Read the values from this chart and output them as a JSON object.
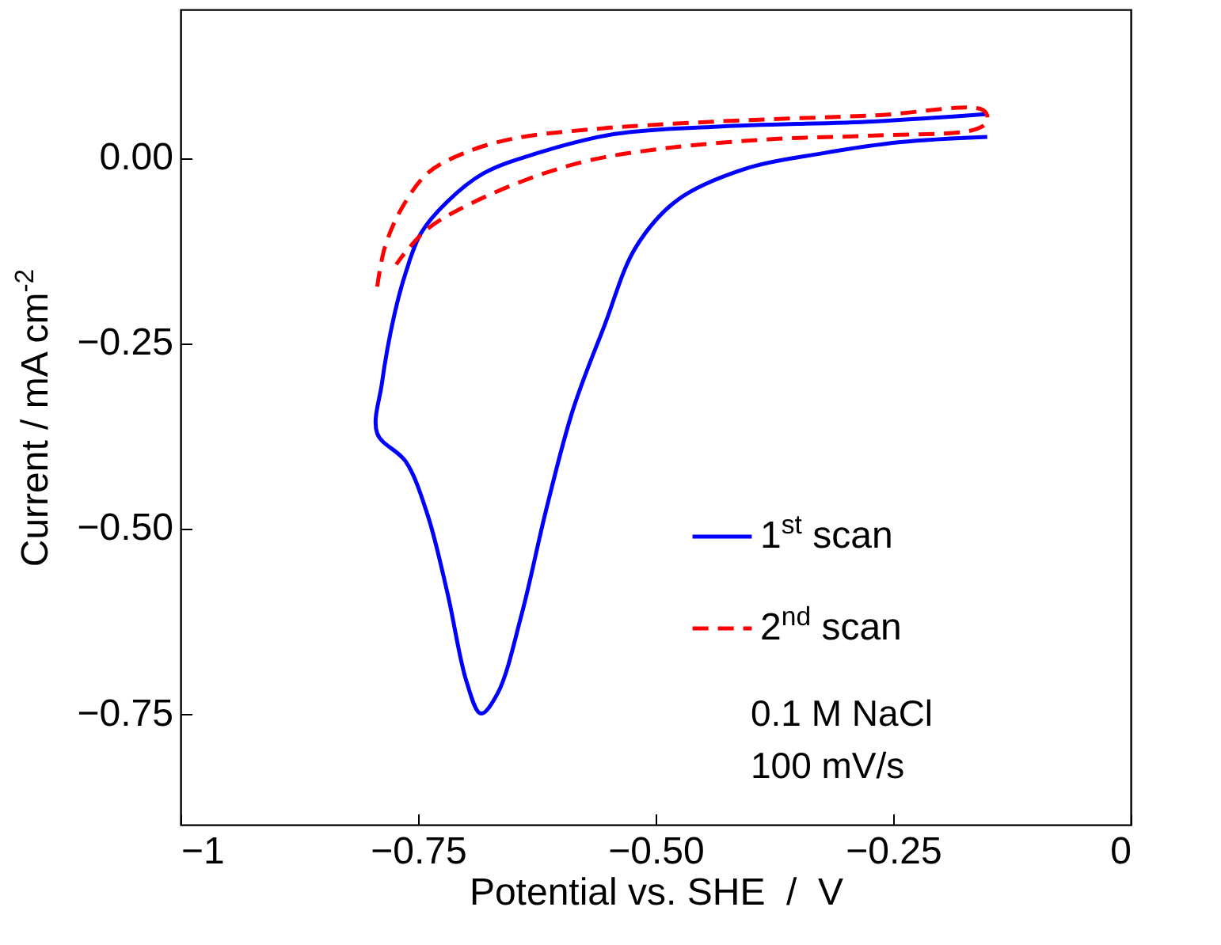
{
  "chart_data": {
    "type": "line",
    "xlabel": "Potential vs. SHE  /  V",
    "ylabel": "Current / mA cm$^{-2}$",
    "xlim": [
      -1,
      0
    ],
    "ylim": [
      -0.9,
      0.2
    ],
    "xticks": [
      {
        "value": -1,
        "label": "−1"
      },
      {
        "value": -0.75,
        "label": "−0.75"
      },
      {
        "value": -0.5,
        "label": "−0.50"
      },
      {
        "value": -0.25,
        "label": "−0.25"
      },
      {
        "value": 0,
        "label": "0"
      }
    ],
    "yticks": [
      {
        "value": 0,
        "label": "0.00"
      },
      {
        "value": -0.25,
        "label": "−0.25"
      },
      {
        "value": -0.5,
        "label": "−0.50"
      },
      {
        "value": -0.75,
        "label": "−0.75"
      }
    ],
    "grid": false,
    "legend": "bottom right",
    "annotations": [
      "0.1 M NaCl",
      "100 mV/s"
    ],
    "series": [
      {
        "name": "1$^{st}$ scan",
        "color": "#0000ff",
        "line_style": "solid",
        "x": [
          -0.151,
          -0.27,
          -0.434,
          -0.543,
          -0.625,
          -0.681,
          -0.719,
          -0.747,
          -0.763,
          -0.775,
          -0.788,
          -0.793,
          -0.763,
          -0.74,
          -0.719,
          -0.699,
          -0.684,
          -0.666,
          -0.641,
          -0.615,
          -0.587,
          -0.554,
          -0.521,
          -0.477,
          -0.406,
          -0.324,
          -0.242,
          -0.151
        ],
        "values": [
          0.059,
          0.049,
          0.042,
          0.032,
          0.006,
          -0.021,
          -0.059,
          -0.102,
          -0.155,
          -0.212,
          -0.304,
          -0.372,
          -0.41,
          -0.482,
          -0.588,
          -0.707,
          -0.75,
          -0.722,
          -0.616,
          -0.474,
          -0.34,
          -0.227,
          -0.121,
          -0.057,
          -0.015,
          0.006,
          0.021,
          0.028
        ]
      },
      {
        "name": "2$^{nd}$ scan",
        "color": "#ff0000",
        "line_style": "dashed",
        "x": [
          -0.793,
          -0.785,
          -0.768,
          -0.74,
          -0.702,
          -0.653,
          -0.571,
          -0.434,
          -0.27,
          -0.155,
          -0.151,
          -0.164,
          -0.27,
          -0.378,
          -0.488,
          -0.571,
          -0.641,
          -0.707,
          -0.74,
          -0.763,
          -0.773
        ],
        "values": [
          -0.174,
          -0.121,
          -0.07,
          -0.021,
          0.006,
          0.025,
          0.038,
          0.049,
          0.057,
          0.064,
          0.049,
          0.038,
          0.03,
          0.025,
          0.013,
          -0.004,
          -0.032,
          -0.07,
          -0.096,
          -0.127,
          -0.144
        ]
      }
    ]
  }
}
